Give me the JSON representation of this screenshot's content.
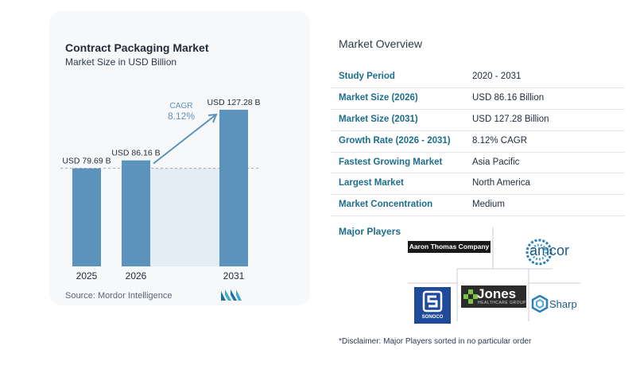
{
  "chart": {
    "title": "Contract Packaging Market",
    "subtitle": "Market Size in USD Billion",
    "source": "Source:  Mordor Intelligence",
    "cagr_label": "CAGR",
    "cagr_value": "8.12%"
  },
  "chart_data": {
    "type": "bar",
    "categories": [
      "2025",
      "2026",
      "2031"
    ],
    "values": [
      79.69,
      86.16,
      127.28
    ],
    "data_labels": [
      "USD 79.69 B",
      "USD 86.16 B",
      "USD 127.28 B"
    ],
    "title": "Contract Packaging Market",
    "subtitle": "Market Size in USD Billion",
    "ylim": [
      0,
      127.28
    ],
    "grid": false,
    "bar_color": "#5b93bd",
    "annotation": "CAGR 8.12%"
  },
  "overview": {
    "title": "Market Overview",
    "rows": [
      {
        "label": "Study Period",
        "value": "2020 - 2031"
      },
      {
        "label": "Market Size (2026)",
        "value": "USD 86.16 Billion"
      },
      {
        "label": "Market Size (2031)",
        "value": "USD 127.28 Billion"
      },
      {
        "label": "Growth Rate (2026 - 2031)",
        "value": "8.12% CAGR"
      },
      {
        "label": "Fastest Growing Market",
        "value": "Asia Pacific"
      },
      {
        "label": "Largest Market",
        "value": "North America"
      },
      {
        "label": "Market Concentration",
        "value": "Medium"
      }
    ]
  },
  "players": {
    "label": "Major Players",
    "names": [
      "Aaron Thomas Company",
      "amcor",
      "SONOCO",
      "Jones",
      "HEALTHCARE GROUP",
      "Sharp"
    ]
  },
  "disclaimer": "*Disclaimer: Major Players sorted in no particular order",
  "colors": {
    "bar": "#5b93bd",
    "label_teal": "#1c6e8c",
    "shaded_region": "#e4ecf4"
  }
}
